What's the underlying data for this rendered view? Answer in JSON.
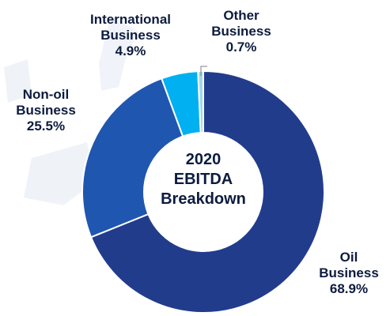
{
  "chart_data": {
    "type": "pie",
    "donut": true,
    "center_label": [
      "2020",
      "EBITDA",
      "Breakdown"
    ],
    "slices": [
      {
        "name_lines": [
          "Oil",
          "Business"
        ],
        "percent_label": "68.9%",
        "value": 68.9,
        "color": "#223c8c"
      },
      {
        "name_lines": [
          "Non-oil",
          "Business"
        ],
        "percent_label": "25.5%",
        "value": 25.5,
        "color": "#1f56b0"
      },
      {
        "name_lines": [
          "International",
          "Business"
        ],
        "percent_label": "4.9%",
        "value": 4.9,
        "color": "#00b0f0"
      },
      {
        "name_lines": [
          "Other",
          "Business"
        ],
        "percent_label": "0.7%",
        "value": 0.7,
        "color": "#9fd6f0"
      }
    ],
    "start": "12 o'clock",
    "direction": "clockwise",
    "legend": "none (labels beside slices)"
  }
}
